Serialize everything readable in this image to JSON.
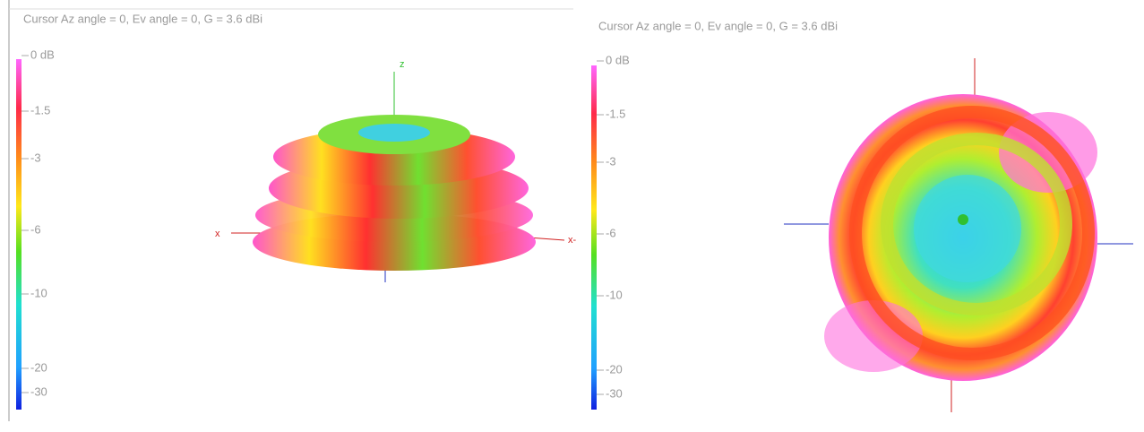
{
  "panels": [
    {
      "cursor": "Cursor Az angle = 0,  Ev angle = 0,  G = 3.6 dBi",
      "scale": [
        "0 dB",
        "-1.5",
        "-3",
        "-6",
        "-10",
        "-20",
        "-30"
      ],
      "axes": [
        "z",
        "x",
        "x-"
      ]
    },
    {
      "cursor": "Cursor Az angle = 0,  Ev angle = 0,  G = 3.6 dBi",
      "scale": [
        "0 dB",
        "-1.5",
        "-3",
        "-6",
        "-10",
        "-20",
        "-30"
      ]
    }
  ]
}
